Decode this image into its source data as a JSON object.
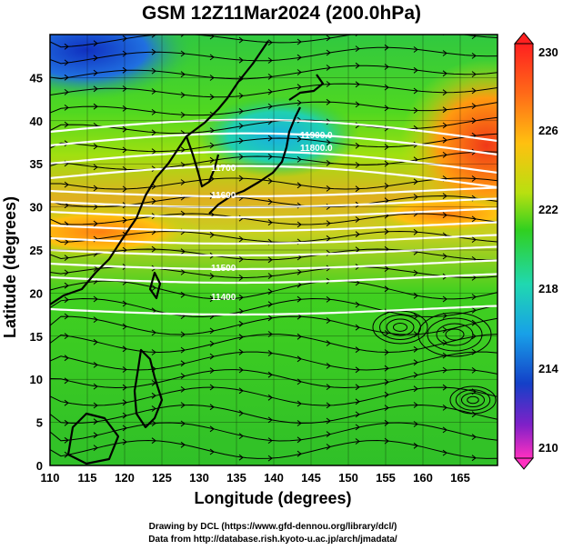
{
  "title": "GSM 12Z11Mar2024 (200.0hPa)",
  "map": {
    "x_axis_label": "Longitude (degrees)",
    "y_axis_label": "Latitude  (degrees)",
    "x_ticks": [
      "110",
      "115",
      "120",
      "125",
      "130",
      "135",
      "140",
      "145",
      "150",
      "155",
      "160",
      "165"
    ],
    "y_ticks": [
      "0",
      "5",
      "10",
      "15",
      "20",
      "25",
      "30",
      "35",
      "40",
      "45"
    ],
    "lon_range": [
      110,
      170
    ],
    "lat_range": [
      0,
      50
    ],
    "contour_labels": [
      "11900.0",
      "11800.0",
      "11700",
      "11600",
      "11500",
      "11400"
    ],
    "colorbar": {
      "ticks": [
        "230",
        "226",
        "222",
        "218",
        "214",
        "210"
      ],
      "colors": [
        "#ff2020",
        "#ff9a10",
        "#ffe000",
        "#30d020",
        "#20d8b0",
        "#18a0e8",
        "#1440c8",
        "#c020c8",
        "#ff30c0"
      ]
    }
  },
  "credits": {
    "line1": "Drawing by DCL (https://www.gfd-dennou.org/library/dcl/)",
    "line2": "Data from http://database.rish.kyoto-u.ac.jp/arch/jmadata/"
  }
}
